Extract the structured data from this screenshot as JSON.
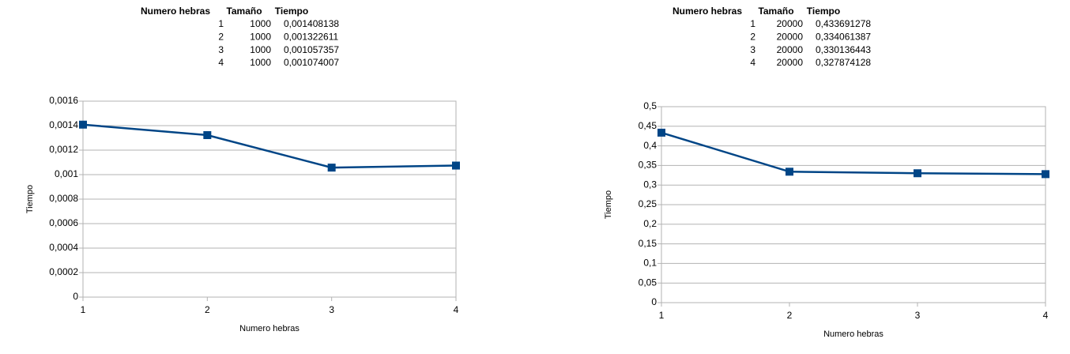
{
  "tables": [
    {
      "header": [
        "Numero hebras",
        "Tamaño",
        "Tiempo"
      ],
      "rows": [
        [
          "1",
          "1000",
          "0,001408138"
        ],
        [
          "2",
          "1000",
          "0,001322611"
        ],
        [
          "3",
          "1000",
          "0,001057357"
        ],
        [
          "4",
          "1000",
          "0,001074007"
        ]
      ]
    },
    {
      "header": [
        "Numero hebras",
        "Tamaño",
        "Tiempo"
      ],
      "rows": [
        [
          "1",
          "20000",
          "0,433691278"
        ],
        [
          "2",
          "20000",
          "0,334061387"
        ],
        [
          "3",
          "20000",
          "0,330136443"
        ],
        [
          "4",
          "20000",
          "0,327874128"
        ]
      ]
    }
  ],
  "chart_data": [
    {
      "type": "line",
      "x_label": "Numero hebras",
      "y_label": "Tiempo",
      "x": [
        1,
        2,
        3,
        4
      ],
      "values": [
        0.001408138,
        0.001322611,
        0.001057357,
        0.001074007
      ],
      "color": "#004586",
      "xlim": [
        1,
        4
      ],
      "xticks": [
        1,
        2,
        3,
        4
      ],
      "ylim": [
        0,
        0.0016
      ],
      "yticks": [
        0,
        {
          "value": 0.0002,
          "label": "0,0002"
        },
        {
          "value": 0.0004,
          "label": "0,0004"
        },
        {
          "value": 0.0006,
          "label": "0,0006"
        },
        {
          "value": 0.0008,
          "label": "0,0008"
        },
        {
          "value": 0.001,
          "label": "0,001"
        },
        {
          "value": 0.0012,
          "label": "0,0012"
        },
        {
          "value": 0.0014,
          "label": "0,0014"
        },
        {
          "value": 0.0016,
          "label": "0,0016"
        }
      ],
      "grid": true
    },
    {
      "type": "line",
      "x_label": "Numero hebras",
      "y_label": "Tiempo",
      "x": [
        1,
        2,
        3,
        4
      ],
      "values": [
        0.433691278,
        0.334061387,
        0.330136443,
        0.327874128
      ],
      "color": "#004586",
      "xlim": [
        1,
        4
      ],
      "xticks": [
        1,
        2,
        3,
        4
      ],
      "ylim": [
        0,
        0.5
      ],
      "yticks": [
        0,
        {
          "value": 0.05,
          "label": "0,05"
        },
        {
          "value": 0.1,
          "label": "0,1"
        },
        {
          "value": 0.15,
          "label": "0,15"
        },
        {
          "value": 0.2,
          "label": "0,2"
        },
        {
          "value": 0.25,
          "label": "0,25"
        },
        {
          "value": 0.3,
          "label": "0,3"
        },
        {
          "value": 0.35,
          "label": "0,35"
        },
        {
          "value": 0.4,
          "label": "0,4"
        },
        {
          "value": 0.45,
          "label": "0,45"
        },
        {
          "value": 0.5,
          "label": "0,5"
        }
      ],
      "grid": true
    }
  ]
}
